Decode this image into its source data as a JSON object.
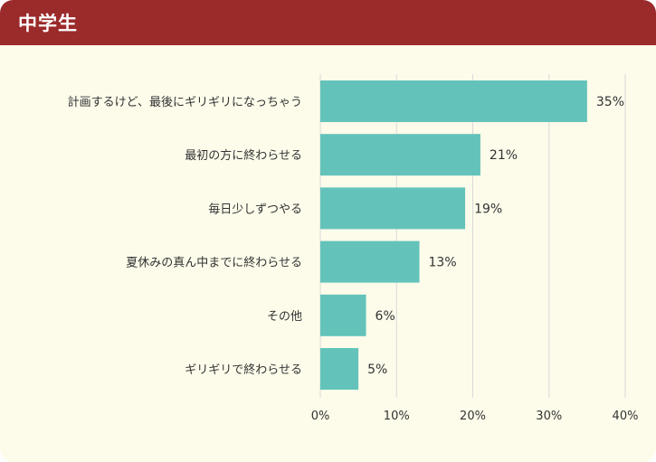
{
  "header": {
    "title": "中学生"
  },
  "colors": {
    "header_bg": "#9b2a2b",
    "panel_bg": "#fdfbea",
    "bar": "#63c3ba",
    "grid": "#d9d9d9",
    "text": "#333333"
  },
  "chart_data": {
    "type": "bar",
    "orientation": "horizontal",
    "categories": [
      "計画するけど、最後にギリギリになっちゃう",
      "最初の方に終わらせる",
      "毎日少しずつやる",
      "夏休みの真ん中までに終わらせる",
      "その他",
      "ギリギリで終わらせる"
    ],
    "values": [
      35,
      21,
      19,
      13,
      6,
      5
    ],
    "value_labels": [
      "35%",
      "21%",
      "19%",
      "13%",
      "6%",
      "5%"
    ],
    "x_ticks": [
      "0%",
      "10%",
      "20%",
      "30%",
      "40%"
    ],
    "x_tick_values": [
      0,
      10,
      20,
      30,
      40
    ],
    "xlim": [
      0,
      40
    ],
    "grid": true,
    "legend": "none"
  }
}
